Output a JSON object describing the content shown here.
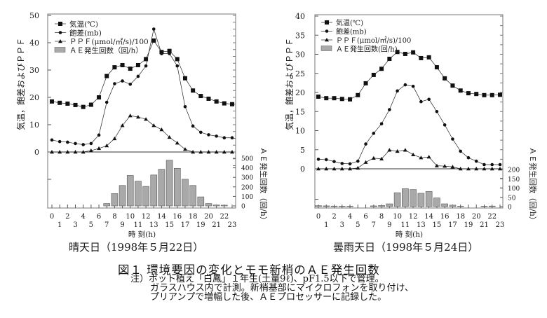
{
  "chart_data": [
    {
      "type": "line+bar",
      "subtitle": "晴天日（1998年５月22日）",
      "xlabel": "時 刻(h)",
      "ylabel_left": "気温，飽差およびＰＰＦ",
      "ylabel_right": "ＡＥ発生回数（回/h）",
      "ylim_left": [
        0,
        50
      ],
      "yticks_left": [
        0,
        10,
        20,
        30,
        40,
        50
      ],
      "ylim_right": [
        0,
        500
      ],
      "yticks_right": [
        0,
        100,
        200,
        300,
        400,
        500
      ],
      "x": [
        0,
        1,
        2,
        3,
        4,
        5,
        6,
        7,
        8,
        9,
        10,
        11,
        12,
        13,
        14,
        15,
        16,
        17,
        18,
        19,
        20,
        21,
        22,
        23
      ],
      "legend": [
        "気温(℃)",
        "飽差(mb)",
        "ＰＰＦ(μmol/㎡/s)/100",
        "ＡＥ発生回数（回/h）"
      ],
      "legend_position": "top-left",
      "series": [
        {
          "name": "気温(℃)",
          "marker": "square",
          "values": [
            18.5,
            18,
            17.7,
            17.2,
            16.5,
            17.3,
            20,
            27.8,
            31,
            31.8,
            30.5,
            31.8,
            34,
            40.8,
            36.6,
            37,
            34,
            27,
            22.5,
            20.5,
            19.5,
            18.5,
            17.8,
            17.5
          ]
        },
        {
          "name": "飽差(mb)",
          "marker": "diamond",
          "values": [
            4.4,
            3.8,
            3.6,
            3.1,
            2.7,
            3.1,
            6.2,
            18.2,
            25,
            26,
            24.8,
            27.7,
            31.5,
            45,
            36,
            36,
            31.5,
            16.6,
            9.5,
            7.2,
            6.3,
            5.8,
            5.2,
            5.2
          ]
        },
        {
          "name": "ＰＰＦ(μmol/㎡/s)/100",
          "marker": "triangle",
          "values": [
            0,
            0,
            0,
            0,
            0,
            0.5,
            1.3,
            2.3,
            4.9,
            9.7,
            13.3,
            12.8,
            12,
            9.7,
            8.2,
            5.4,
            3.3,
            1,
            0,
            0,
            0,
            0,
            0,
            0
          ]
        },
        {
          "name": "ＡＥ発生回数（回/h）",
          "type": "bar",
          "axis": "right",
          "values": [
            0,
            0,
            0,
            0,
            0,
            0,
            0,
            25,
            130,
            215,
            320,
            260,
            205,
            325,
            385,
            480,
            395,
            280,
            215,
            95,
            25,
            10,
            8,
            0
          ]
        }
      ]
    },
    {
      "type": "line+bar",
      "subtitle": "曇雨天日（1998年５月24日）",
      "xlabel": "時 刻(h)",
      "ylabel_left": "気温，飽差およびＰＰＦ",
      "ylabel_right": "ＡＥ発生回数（回/h）",
      "ylim_left": [
        0,
        40
      ],
      "yticks_left": [
        0,
        5,
        10,
        15,
        20,
        25,
        30,
        35,
        40
      ],
      "ylim_right": [
        0,
        200
      ],
      "yticks_right": [
        0,
        50,
        100,
        150,
        200
      ],
      "x": [
        0,
        1,
        2,
        3,
        4,
        5,
        6,
        7,
        8,
        9,
        10,
        11,
        12,
        13,
        14,
        15,
        16,
        17,
        18,
        19,
        20,
        21,
        22,
        23
      ],
      "legend": [
        "気温(℃)",
        "飽差(mb)",
        "ＰＰＦ(μmol/㎡/s)/100",
        "ＡＥ発生回数(回/h)"
      ],
      "legend_position": "top-left",
      "series": [
        {
          "name": "気温(℃)",
          "marker": "square",
          "values": [
            18.9,
            18.5,
            18.5,
            18.3,
            18.2,
            19.3,
            22.4,
            24.6,
            26.2,
            28.8,
            30.6,
            30.1,
            30.5,
            29,
            29.2,
            26.6,
            23.7,
            21.8,
            20.5,
            19.8,
            19.6,
            19.3,
            19.3,
            19.4
          ]
        },
        {
          "name": "飽差(mb)",
          "marker": "diamond",
          "values": [
            2.5,
            2.4,
            1.9,
            1.4,
            1.3,
            2,
            6.5,
            9.3,
            11.8,
            15.5,
            20.4,
            22,
            21.6,
            17.6,
            18.2,
            15,
            11.5,
            7.8,
            4.6,
            2.9,
            2,
            1.1,
            1.1,
            1.1
          ]
        },
        {
          "name": "ＰＰＦ(μmol/㎡/s)/100",
          "marker": "triangle",
          "values": [
            0,
            0,
            0,
            0,
            0,
            0.2,
            1.7,
            2.8,
            2.6,
            4.9,
            4.6,
            4.9,
            3.7,
            2.9,
            3.1,
            0.8,
            0.7,
            0.5,
            0,
            0,
            0,
            0,
            0,
            0
          ]
        },
        {
          "name": "ＡＥ発生回数(回/h)",
          "type": "bar",
          "axis": "right",
          "values": [
            5,
            4,
            3,
            2,
            2,
            0,
            0,
            4,
            6,
            15,
            75,
            97,
            92,
            72,
            82,
            47,
            15,
            8,
            2,
            0,
            0,
            2,
            3,
            0
          ]
        }
      ]
    }
  ],
  "caption": {
    "title": "図１ 環境要因の変化とモモ新梢のＡＥ発生回数",
    "notes": [
      "注）ポット植え「白鳳」１年生(土量9ℓ)、pF1.5以下で管理。",
      "ガラスハウス内で計測。新梢基部にマイクロフォンを取り付け、",
      "プリアンプで増幅した後、ＡＥプロセッサーに記録した。"
    ]
  },
  "colors": {
    "line": "#222222",
    "bar_fill": "#a9a9a9",
    "bar_stroke": "#555555"
  }
}
